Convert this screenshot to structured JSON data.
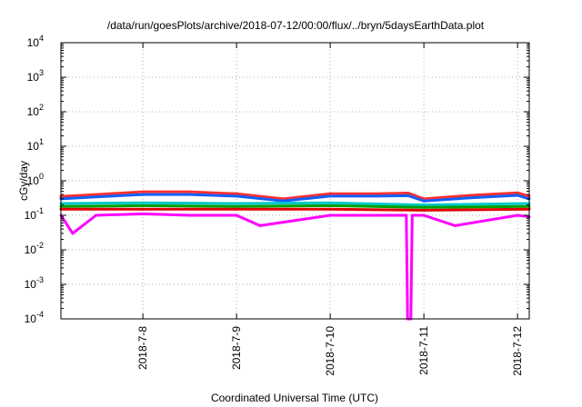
{
  "chart_data": {
    "type": "line",
    "title": "/data/run/goesPlots/archive/2018-07-12/00:00/flux/../bryn/5daysEarthData.plot",
    "xlabel": "Coordinated Universal Time (UTC)",
    "ylabel": "cGy/day",
    "y_scale": "log",
    "ylim": [
      0.0001,
      10000
    ],
    "y_ticks": [
      {
        "value": 0.0001,
        "base": "10",
        "exp": "-4"
      },
      {
        "value": 0.001,
        "base": "10",
        "exp": "-3"
      },
      {
        "value": 0.01,
        "base": "10",
        "exp": "-2"
      },
      {
        "value": 0.1,
        "base": "10",
        "exp": "-1"
      },
      {
        "value": 1,
        "base": "10",
        "exp": "0"
      },
      {
        "value": 10,
        "base": "10",
        "exp": "1"
      },
      {
        "value": 100,
        "base": "10",
        "exp": "2"
      },
      {
        "value": 1000,
        "base": "10",
        "exp": "3"
      },
      {
        "value": 10000,
        "base": "10",
        "exp": "4"
      }
    ],
    "xlim": [
      "2018-07-07 03:00",
      "2018-07-12 03:00"
    ],
    "x_ticks": [
      {
        "label": "2018-7-8",
        "value": "2018-07-08 00:00"
      },
      {
        "label": "2018-7-9",
        "value": "2018-07-09 00:00"
      },
      {
        "label": "2018-7-10",
        "value": "2018-07-10 00:00"
      },
      {
        "label": "2018-7-11",
        "value": "2018-07-11 00:00"
      },
      {
        "label": "2018-7-12",
        "value": "2018-07-12 00:00"
      }
    ],
    "grid": true,
    "legend": "none",
    "series": [
      {
        "color": "#ff3030",
        "x": [
          "2018-07-07 03:00",
          "2018-07-07 12:00",
          "2018-07-08 00:00",
          "2018-07-08 12:00",
          "2018-07-09 00:00",
          "2018-07-09 12:00",
          "2018-07-10 00:00",
          "2018-07-10 12:00",
          "2018-07-10 20:00",
          "2018-07-11 00:00",
          "2018-07-11 12:00",
          "2018-07-12 00:00",
          "2018-07-12 03:00"
        ],
        "y": [
          0.35,
          0.4,
          0.48,
          0.48,
          0.42,
          0.3,
          0.42,
          0.42,
          0.44,
          0.3,
          0.38,
          0.45,
          0.36
        ]
      },
      {
        "color": "#1060ff",
        "x": [
          "2018-07-07 03:00",
          "2018-07-07 12:00",
          "2018-07-08 00:00",
          "2018-07-08 12:00",
          "2018-07-09 00:00",
          "2018-07-09 12:00",
          "2018-07-10 00:00",
          "2018-07-10 12:00",
          "2018-07-10 20:00",
          "2018-07-11 00:00",
          "2018-07-11 12:00",
          "2018-07-12 00:00",
          "2018-07-12 03:00"
        ],
        "y": [
          0.3,
          0.34,
          0.4,
          0.4,
          0.36,
          0.26,
          0.36,
          0.36,
          0.37,
          0.26,
          0.32,
          0.38,
          0.3
        ]
      },
      {
        "color": "#00c8c8",
        "x": [
          "2018-07-07 03:00",
          "2018-07-08 00:00",
          "2018-07-09 00:00",
          "2018-07-10 00:00",
          "2018-07-11 00:00",
          "2018-07-12 03:00"
        ],
        "y": [
          0.22,
          0.23,
          0.22,
          0.23,
          0.2,
          0.22
        ]
      },
      {
        "color": "#00a000",
        "x": [
          "2018-07-07 03:00",
          "2018-07-08 00:00",
          "2018-07-09 00:00",
          "2018-07-10 00:00",
          "2018-07-11 00:00",
          "2018-07-12 03:00"
        ],
        "y": [
          0.18,
          0.19,
          0.18,
          0.19,
          0.17,
          0.18
        ]
      },
      {
        "color": "#e00000",
        "x": [
          "2018-07-07 03:00",
          "2018-07-08 00:00",
          "2018-07-09 00:00",
          "2018-07-10 00:00",
          "2018-07-11 00:00",
          "2018-07-12 03:00"
        ],
        "y": [
          0.15,
          0.15,
          0.15,
          0.15,
          0.14,
          0.15
        ]
      },
      {
        "color": "#ff00ff",
        "x": [
          "2018-07-07 03:00",
          "2018-07-07 06:00",
          "2018-07-07 12:00",
          "2018-07-08 00:00",
          "2018-07-08 12:00",
          "2018-07-09 00:00",
          "2018-07-09 06:00",
          "2018-07-10 00:00",
          "2018-07-10 12:00",
          "2018-07-10 19:30",
          "2018-07-10 19:50",
          "2018-07-10 20:40",
          "2018-07-10 21:00",
          "2018-07-11 00:00",
          "2018-07-11 08:00",
          "2018-07-12 00:00",
          "2018-07-12 03:00"
        ],
        "y": [
          0.1,
          0.03,
          0.1,
          0.11,
          0.1,
          0.1,
          0.05,
          0.1,
          0.1,
          0.1,
          0.0001,
          0.0001,
          0.1,
          0.1,
          0.05,
          0.1,
          0.09
        ]
      }
    ]
  }
}
